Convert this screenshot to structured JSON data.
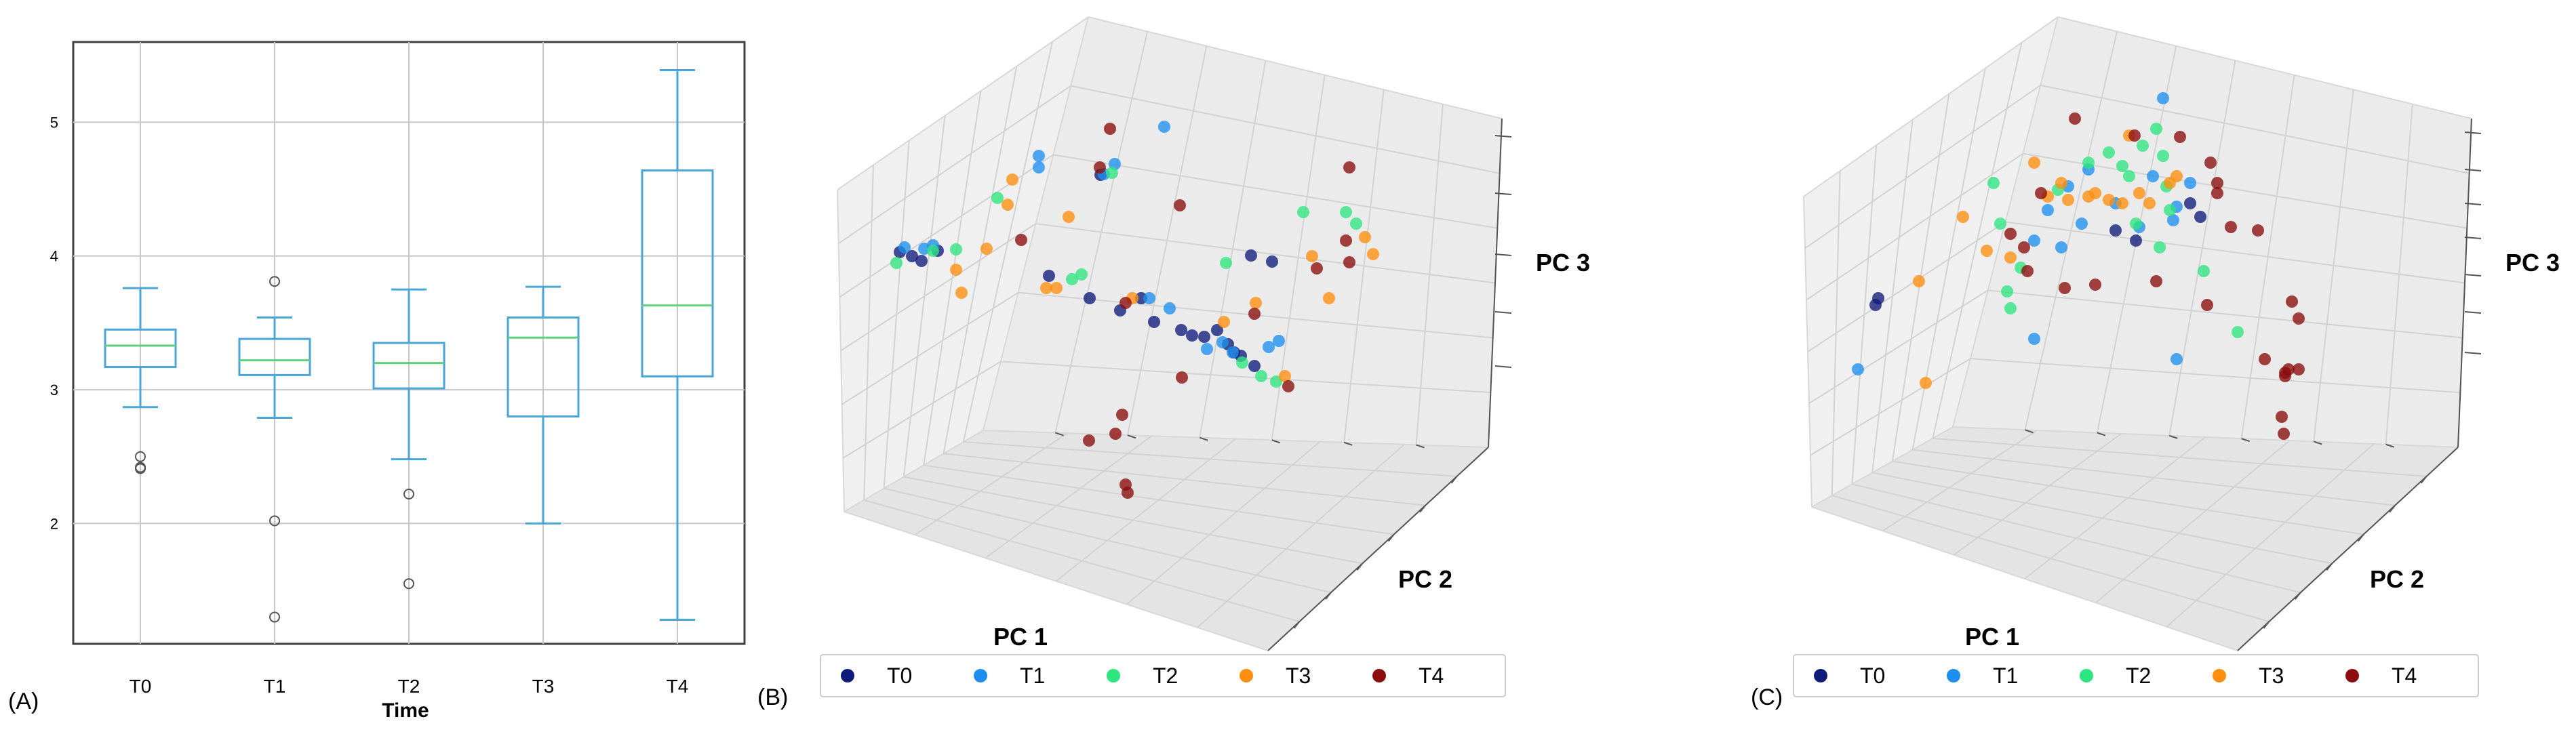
{
  "panels": {
    "A": "(A)",
    "B": "(B)",
    "C": "(C)"
  },
  "colors": {
    "box": "#4aa6d6",
    "median": "#5fd07a",
    "grid": "#c8c8c8",
    "frame": "#404040",
    "T0": "#0f1b7a",
    "T1": "#1e8fee",
    "T2": "#2ee67f",
    "T3": "#ff8f0e",
    "T4": "#8b0d0d"
  },
  "chart_data": [
    {
      "type": "box",
      "panel": "A",
      "xlabel": "Time",
      "ylabel": "",
      "categories": [
        "T0",
        "T1",
        "T2",
        "T3",
        "T4"
      ],
      "yticks": [
        "2",
        "3",
        "4",
        "5"
      ],
      "ylim": [
        1.1,
        5.6
      ],
      "grid": true,
      "boxes": [
        {
          "category": "T0",
          "whisker_low": 2.87,
          "q1": 3.17,
          "median": 3.33,
          "q3": 3.45,
          "whisker_high": 3.76,
          "outliers": [
            2.5,
            2.42,
            2.41
          ]
        },
        {
          "category": "T1",
          "whisker_low": 2.79,
          "q1": 3.11,
          "median": 3.22,
          "q3": 3.38,
          "whisker_high": 3.54,
          "outliers": [
            3.81,
            2.02,
            1.3
          ]
        },
        {
          "category": "T2",
          "whisker_low": 2.48,
          "q1": 3.01,
          "median": 3.2,
          "q3": 3.35,
          "whisker_high": 3.75,
          "outliers": [
            2.22,
            1.55
          ]
        },
        {
          "category": "T3",
          "whisker_low": 2.0,
          "q1": 2.8,
          "median": 3.39,
          "q3": 3.54,
          "whisker_high": 3.77,
          "outliers": []
        },
        {
          "category": "T4",
          "whisker_low": 1.28,
          "q1": 3.1,
          "median": 3.63,
          "q3": 4.64,
          "whisker_high": 5.39,
          "outliers": []
        }
      ]
    },
    {
      "type": "scatter",
      "panel": "B",
      "xlabel": "PC 1",
      "ylabel": "PC 2",
      "zlabel": "PC 3",
      "legend": [
        "T0",
        "T1",
        "T2",
        "T3",
        "T4"
      ],
      "legend_position": "bottom",
      "series": [
        {
          "name": "T0",
          "points": [
            [
              1327,
              372
            ],
            [
              1345,
              378
            ],
            [
              1359,
              385
            ],
            [
              1383,
              370
            ],
            [
              1547,
              407
            ],
            [
              1607,
              440
            ],
            [
              1652,
              458
            ],
            [
              1683,
              440
            ],
            [
              1702,
              475
            ],
            [
              1742,
              487
            ],
            [
              1758,
              495
            ],
            [
              1776,
              497
            ],
            [
              1795,
              487
            ],
            [
              1811,
              508
            ],
            [
              1820,
              520
            ],
            [
              1850,
              540
            ],
            [
              1830,
              525
            ],
            [
              1623,
              258
            ],
            [
              1845,
              377
            ],
            [
              1876,
              386
            ]
          ]
        },
        {
          "name": "T1",
          "points": [
            [
              1334,
              365
            ],
            [
              1363,
              367
            ],
            [
              1376,
              362
            ],
            [
              1532,
              247
            ],
            [
              1532,
              230
            ],
            [
              1628,
              257
            ],
            [
              1644,
              242
            ],
            [
              1717,
              187
            ],
            [
              1695,
              440
            ],
            [
              1725,
              455
            ],
            [
              1780,
              515
            ],
            [
              1803,
              505
            ],
            [
              1818,
              520
            ],
            [
              1871,
              512
            ],
            [
              1886,
              503
            ]
          ]
        },
        {
          "name": "T2",
          "points": [
            [
              1322,
              388
            ],
            [
              1376,
              370
            ],
            [
              1410,
              368
            ],
            [
              1471,
              292
            ],
            [
              1581,
              412
            ],
            [
              1595,
              405
            ],
            [
              1640,
              255
            ],
            [
              1808,
              388
            ],
            [
              1832,
              535
            ],
            [
              1860,
              555
            ],
            [
              1882,
              563
            ],
            [
              1922,
              313
            ],
            [
              1985,
              313
            ],
            [
              2000,
              330
            ]
          ]
        },
        {
          "name": "T3",
          "points": [
            [
              1410,
              398
            ],
            [
              1418,
              432
            ],
            [
              1455,
              367
            ],
            [
              1493,
              265
            ],
            [
              1486,
              302
            ],
            [
              1543,
              425
            ],
            [
              1558,
              425
            ],
            [
              1576,
              320
            ],
            [
              1670,
              440
            ],
            [
              1805,
              475
            ],
            [
              1852,
              447
            ],
            [
              1895,
              555
            ],
            [
              1935,
              378
            ],
            [
              1960,
              440
            ],
            [
              2013,
              350
            ],
            [
              2025,
              375
            ]
          ]
        },
        {
          "name": "T4",
          "points": [
            [
              1506,
              354
            ],
            [
              1637,
              190
            ],
            [
              1660,
              447
            ],
            [
              1622,
              247
            ],
            [
              1740,
              303
            ],
            [
              1743,
              557
            ],
            [
              1850,
              463
            ],
            [
              1900,
              570
            ],
            [
              1942,
              396
            ],
            [
              1985,
              355
            ],
            [
              1990,
              387
            ],
            [
              1990,
              247
            ],
            [
              1606,
              650
            ],
            [
              1645,
              640
            ],
            [
              1655,
              612
            ],
            [
              1660,
              715
            ],
            [
              1663,
              727
            ]
          ]
        }
      ]
    },
    {
      "type": "scatter",
      "panel": "C",
      "xlabel": "PC 1",
      "ylabel": "PC 2",
      "zlabel": "PC 3",
      "legend": [
        "T0",
        "T1",
        "T2",
        "T3",
        "T4"
      ],
      "legend_position": "bottom",
      "series": [
        {
          "name": "T0",
          "points": [
            [
              2770,
              440
            ],
            [
              2766,
              450
            ],
            [
              3120,
              340
            ],
            [
              3150,
              355
            ],
            [
              3230,
              300
            ],
            [
              3245,
              320
            ]
          ]
        },
        {
          "name": "T1",
          "points": [
            [
              2740,
              545
            ],
            [
              3000,
              355
            ],
            [
              3020,
              310
            ],
            [
              3040,
              365
            ],
            [
              3050,
              275
            ],
            [
              3120,
              300
            ],
            [
              3155,
              335
            ],
            [
              3190,
              145
            ],
            [
              3175,
              260
            ],
            [
              3080,
              250
            ],
            [
              3205,
              325
            ],
            [
              3210,
              305
            ],
            [
              3210,
              530
            ],
            [
              3230,
              270
            ],
            [
              3000,
              500
            ],
            [
              3070,
              330
            ]
          ]
        },
        {
          "name": "T2",
          "points": [
            [
              2940,
              270
            ],
            [
              2950,
              330
            ],
            [
              2960,
              430
            ],
            [
              2965,
              455
            ],
            [
              2980,
              395
            ],
            [
              3035,
              280
            ],
            [
              3080,
              240
            ],
            [
              3110,
              225
            ],
            [
              3130,
              245
            ],
            [
              3140,
              260
            ],
            [
              3160,
              215
            ],
            [
              3180,
              190
            ],
            [
              3190,
              230
            ],
            [
              3195,
              275
            ],
            [
              3200,
              310
            ],
            [
              3185,
              365
            ],
            [
              3150,
              330
            ],
            [
              3250,
              400
            ],
            [
              3300,
              490
            ]
          ]
        },
        {
          "name": "T3",
          "points": [
            [
              2830,
              415
            ],
            [
              2840,
              565
            ],
            [
              2895,
              320
            ],
            [
              2930,
              370
            ],
            [
              2965,
              380
            ],
            [
              3000,
              240
            ],
            [
              3020,
              290
            ],
            [
              3040,
              270
            ],
            [
              3050,
              295
            ],
            [
              3080,
              290
            ],
            [
              3110,
              295
            ],
            [
              3130,
              300
            ],
            [
              3170,
              300
            ],
            [
              3155,
              285
            ],
            [
              3200,
              270
            ],
            [
              3210,
              260
            ],
            [
              3090,
              285
            ],
            [
              3140,
              200
            ]
          ]
        },
        {
          "name": "T4",
          "points": [
            [
              3060,
              175
            ],
            [
              3010,
              285
            ],
            [
              2985,
              365
            ],
            [
              2965,
              345
            ],
            [
              2990,
              400
            ],
            [
              3045,
              425
            ],
            [
              3090,
              420
            ],
            [
              3180,
              415
            ],
            [
              3260,
              240
            ],
            [
              3255,
              450
            ],
            [
              3270,
              270
            ],
            [
              3290,
              335
            ],
            [
              3330,
              340
            ],
            [
              3390,
              470
            ],
            [
              3370,
              550
            ],
            [
              3380,
              445
            ],
            [
              3270,
              285
            ],
            [
              3340,
              530
            ],
            [
              3390,
              545
            ],
            [
              3375,
              545
            ],
            [
              3370,
              555
            ],
            [
              3365,
              615
            ],
            [
              3368,
              640
            ],
            [
              3148,
              200
            ],
            [
              3215,
              202
            ]
          ]
        }
      ]
    }
  ]
}
